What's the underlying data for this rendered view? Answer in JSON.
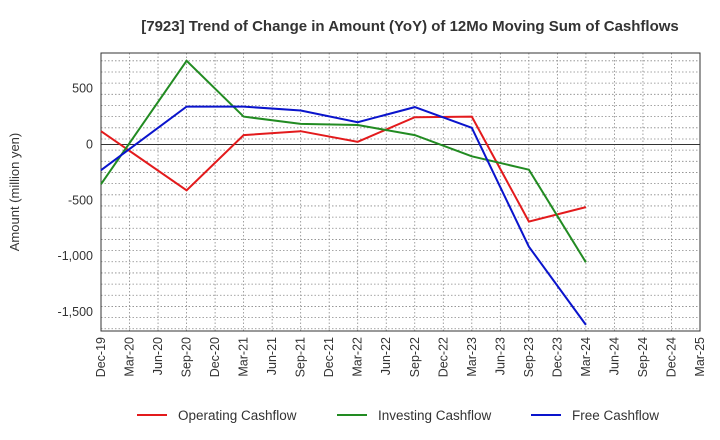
{
  "chart_data": {
    "type": "line",
    "title": "[7923]  Trend of Change in Amount (YoY) of 12Mo Moving Sum of Cashflows",
    "xlabel": "",
    "ylabel": "Amount (million yen)",
    "categories": [
      "Dec-19",
      "Mar-20",
      "Jun-20",
      "Sep-20",
      "Dec-20",
      "Mar-21",
      "Jun-21",
      "Sep-21",
      "Dec-21",
      "Mar-22",
      "Jun-22",
      "Sep-22",
      "Dec-22",
      "Mar-23",
      "Jun-23",
      "Sep-23",
      "Dec-23",
      "Mar-24",
      "Jun-24",
      "Sep-24",
      "Dec-24",
      "Mar-25"
    ],
    "ylim": [
      -1670,
      820
    ],
    "yticks": [
      500,
      0,
      -500,
      -1000,
      -1500
    ],
    "ytick_labels": [
      "500",
      "0",
      "-500",
      "-1,000",
      "-1,500"
    ],
    "grid": true,
    "legend_position": "bottom",
    "series": [
      {
        "name": "Operating Cashflow",
        "color": "#e31a1c",
        "values": [
          120,
          null,
          null,
          -410,
          null,
          85,
          null,
          120,
          null,
          25,
          null,
          245,
          null,
          250,
          null,
          -690,
          null,
          -560,
          null,
          null,
          null,
          null
        ]
      },
      {
        "name": "Investing Cashflow",
        "color": "#228b22",
        "values": [
          -355,
          null,
          null,
          750,
          null,
          250,
          null,
          185,
          null,
          175,
          null,
          85,
          null,
          -105,
          null,
          -225,
          null,
          -1055,
          null,
          null,
          null,
          null
        ]
      },
      {
        "name": "Free Cashflow",
        "color": "#0a14cc",
        "values": [
          -230,
          null,
          null,
          340,
          null,
          340,
          null,
          305,
          null,
          200,
          null,
          335,
          null,
          150,
          null,
          -915,
          null,
          -1615,
          null,
          null,
          null,
          null
        ]
      }
    ]
  }
}
